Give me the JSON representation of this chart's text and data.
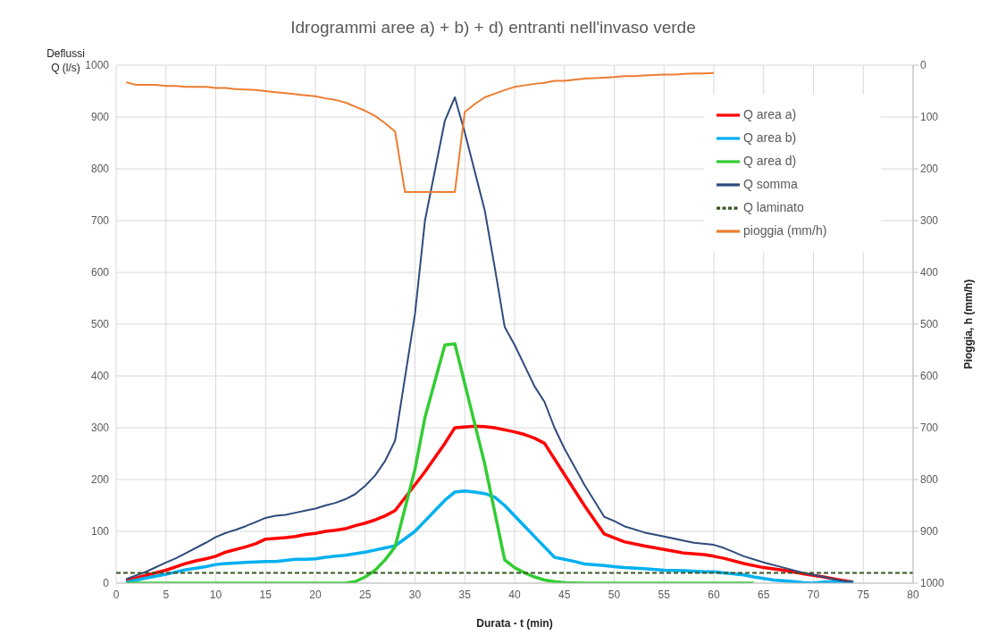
{
  "chart_data": {
    "type": "line",
    "title": "Idrogrammi aree a) + b) + d) entranti nell'invaso verde",
    "xlabel": "Durata - t (min)",
    "ylabel": "Deflussi Q (l/s)",
    "y2label": "Pioggia, h (mm/h)",
    "xlim": [
      0,
      80
    ],
    "xticks": [
      0,
      5,
      10,
      15,
      20,
      25,
      30,
      35,
      40,
      45,
      50,
      55,
      60,
      65,
      70,
      75,
      80
    ],
    "ylim": [
      0,
      1000
    ],
    "yticks": [
      0,
      100,
      200,
      300,
      400,
      500,
      600,
      700,
      800,
      900,
      1000
    ],
    "y2lim": [
      1000,
      0
    ],
    "y2ticks": [
      0,
      100,
      200,
      300,
      400,
      500,
      600,
      700,
      800,
      900,
      1000
    ],
    "grid": true,
    "legend": "top right",
    "series": [
      {
        "name": "Q area a)",
        "color": "#ff0000",
        "x": [
          1,
          3,
          5,
          7,
          8,
          9,
          10,
          11,
          13,
          14,
          15,
          17,
          18,
          19,
          20,
          21,
          22,
          23,
          24,
          25,
          26,
          27,
          28,
          30,
          31,
          33,
          34,
          36,
          37,
          38,
          40,
          41,
          42,
          43,
          45,
          47,
          49,
          51,
          53,
          55,
          57,
          59,
          60,
          61,
          63,
          65,
          67,
          69,
          71,
          73,
          74
        ],
        "values": [
          5,
          15,
          25,
          38,
          43,
          47,
          52,
          60,
          70,
          76,
          85,
          88,
          90,
          94,
          96,
          100,
          102,
          105,
          111,
          116,
          122,
          130,
          140,
          190,
          215,
          270,
          300,
          303,
          302,
          300,
          292,
          287,
          280,
          270,
          210,
          150,
          95,
          80,
          72,
          65,
          58,
          55,
          52,
          48,
          38,
          30,
          25,
          18,
          12,
          5,
          2
        ]
      },
      {
        "name": "Q area b)",
        "color": "#00b0f0",
        "x": [
          1,
          3,
          5,
          7,
          9,
          10,
          11,
          13,
          15,
          16,
          17,
          18,
          19,
          20,
          21,
          22,
          23,
          24,
          25,
          26,
          27,
          28,
          30,
          31,
          32,
          33,
          34,
          35,
          36,
          37,
          38,
          39,
          41,
          43,
          44,
          46,
          47,
          49,
          50,
          51,
          53,
          55,
          57,
          59,
          60,
          61,
          63,
          64,
          65,
          66,
          68,
          69,
          70,
          71,
          72,
          74
        ],
        "values": [
          2,
          10,
          17,
          26,
          32,
          36,
          38,
          40,
          42,
          42,
          44,
          46,
          46,
          47,
          50,
          52,
          54,
          57,
          60,
          64,
          68,
          72,
          100,
          120,
          140,
          160,
          176,
          178,
          176,
          173,
          166,
          150,
          110,
          70,
          50,
          42,
          37,
          34,
          32,
          30,
          28,
          25,
          24,
          22,
          22,
          20,
          16,
          12,
          9,
          6,
          3,
          1,
          0,
          2,
          3,
          2
        ]
      },
      {
        "name": "Q area d)",
        "color": "#33cc33",
        "x": [
          1,
          23,
          24,
          25,
          26,
          27,
          28,
          30,
          31,
          33,
          34,
          37,
          39,
          40,
          41,
          42,
          43,
          44,
          45,
          47,
          64
        ],
        "values": [
          0,
          0,
          3,
          12,
          25,
          45,
          70,
          220,
          320,
          460,
          462,
          230,
          45,
          30,
          20,
          12,
          6,
          3,
          1,
          0,
          0
        ]
      },
      {
        "name": "Q somma",
        "color": "#2f4b7c",
        "x": [
          1,
          3,
          5,
          6,
          7,
          9,
          10,
          11,
          12,
          13,
          14,
          15,
          16,
          17,
          18,
          19,
          20,
          21,
          22,
          23,
          24,
          25,
          26,
          27,
          28,
          30,
          31,
          33,
          34,
          35,
          37,
          38,
          39,
          40,
          41,
          42,
          43,
          44,
          45,
          47,
          49,
          50,
          51,
          53,
          55,
          57,
          58,
          60,
          61,
          62,
          63,
          65,
          67,
          69,
          71,
          73,
          74
        ],
        "values": [
          8,
          22,
          40,
          48,
          58,
          78,
          89,
          97,
          103,
          110,
          118,
          126,
          130,
          132,
          136,
          140,
          144,
          150,
          155,
          162,
          172,
          188,
          208,
          236,
          275,
          520,
          700,
          893,
          938,
          870,
          720,
          610,
          495,
          460,
          420,
          380,
          350,
          300,
          260,
          190,
          128,
          120,
          110,
          98,
          90,
          82,
          78,
          74,
          68,
          60,
          52,
          40,
          30,
          20,
          12,
          4,
          2
        ]
      },
      {
        "name": "Q laminato",
        "color": "#375623",
        "line_style": "dashed",
        "x": [
          0,
          80
        ],
        "values": [
          20,
          20
        ]
      },
      {
        "name": "pioggia (mm/h)",
        "color": "#ed7d31",
        "axis": "y2",
        "x": [
          1,
          2,
          4,
          5,
          6,
          7,
          8,
          9,
          10,
          11,
          12,
          13,
          14,
          15,
          16,
          17,
          18,
          19,
          20,
          21,
          22,
          23,
          24,
          25,
          26,
          27,
          28,
          29,
          34,
          35,
          36,
          37,
          38,
          39,
          40,
          41,
          42,
          43,
          44,
          45,
          46,
          47,
          48,
          49,
          50,
          51,
          52,
          53,
          54,
          55,
          56,
          57,
          58,
          59,
          60
        ],
        "values": [
          33,
          38,
          38,
          40,
          40,
          42,
          42,
          42,
          44,
          44,
          46,
          47,
          48,
          50,
          52,
          54,
          56,
          58,
          60,
          64,
          67,
          72,
          80,
          88,
          98,
          112,
          128,
          245,
          245,
          90,
          75,
          62,
          55,
          48,
          42,
          39,
          36,
          34,
          30,
          30,
          28,
          26,
          25,
          24,
          23,
          21,
          21,
          20,
          19,
          18,
          18,
          17,
          16,
          16,
          15
        ]
      }
    ]
  }
}
